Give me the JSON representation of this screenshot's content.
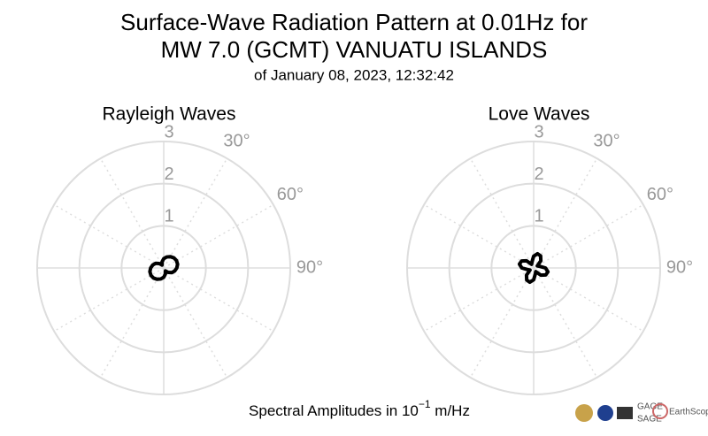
{
  "chart_data": [
    {
      "type": "polar",
      "title": "Rayleigh Waves",
      "color": "#000000",
      "theta": [
        0,
        15,
        30,
        45,
        60,
        75,
        90,
        105,
        120,
        135,
        150,
        165,
        180,
        195,
        210,
        225,
        240,
        255,
        270,
        285,
        300,
        315,
        330,
        345
      ],
      "values": [
        0.22,
        0.27,
        0.31,
        0.34,
        0.35,
        0.34,
        0.31,
        0.27,
        0.22,
        0.15,
        0.08,
        0.15,
        0.22,
        0.27,
        0.31,
        0.34,
        0.35,
        0.34,
        0.31,
        0.27,
        0.22,
        0.15,
        0.08,
        0.15
      ],
      "rlim": [
        0,
        3
      ],
      "rticks": [
        1,
        2,
        3
      ],
      "thetagrid": [
        0,
        30,
        60,
        90,
        120,
        150,
        180,
        210,
        240,
        270,
        300,
        330
      ],
      "thetaticks": [
        {
          "value": 30,
          "label": "30°"
        },
        {
          "value": 60,
          "label": "60°"
        },
        {
          "value": 90,
          "label": "90°"
        }
      ]
    },
    {
      "type": "polar",
      "title": "Love Waves",
      "color": "#000000",
      "theta": [
        0,
        15,
        30,
        45,
        60,
        75,
        90,
        105,
        120,
        135,
        150,
        165,
        180,
        195,
        210,
        225,
        240,
        255,
        270,
        285,
        300,
        315,
        330,
        345
      ],
      "values": [
        0.28,
        0.35,
        0.33,
        0.24,
        0.1,
        0.15,
        0.28,
        0.35,
        0.33,
        0.24,
        0.1,
        0.15,
        0.28,
        0.35,
        0.33,
        0.24,
        0.1,
        0.15,
        0.28,
        0.35,
        0.33,
        0.24,
        0.1,
        0.15
      ],
      "rlim": [
        0,
        3
      ],
      "rticks": [
        1,
        2,
        3
      ],
      "thetagrid": [
        0,
        30,
        60,
        90,
        120,
        150,
        180,
        210,
        240,
        270,
        300,
        330
      ],
      "thetaticks": [
        {
          "value": 30,
          "label": "30°"
        },
        {
          "value": 60,
          "label": "60°"
        },
        {
          "value": 90,
          "label": "90°"
        }
      ]
    }
  ],
  "header": {
    "title_line1": "Surface-Wave Radiation Pattern at 0.01Hz for",
    "title_line2": "MW 7.0 (GCMT) VANUATU ISLANDS",
    "subtitle": "of January 08, 2023, 12:32:42"
  },
  "footer": {
    "label_prefix": "Spectral Amplitudes in 10",
    "label_exponent": "−1",
    "label_suffix": " m/Hz"
  },
  "logos": {
    "gage": "GAGE",
    "sage": "SAGE",
    "earthscope": "EarthScope"
  }
}
